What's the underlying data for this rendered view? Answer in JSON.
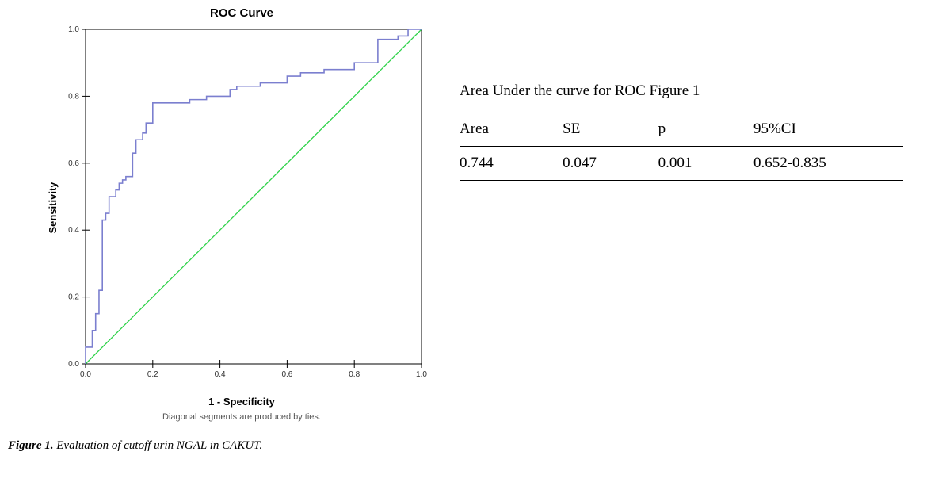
{
  "chart": {
    "type": "line",
    "title": "ROC Curve",
    "xlabel": "1 - Specificity",
    "ylabel": "Sensitivity",
    "footnote": "Diagonal segments are produced by ties.",
    "title_fontsize": 15,
    "label_fontsize": 13,
    "tick_fontsize": 10,
    "footnote_fontsize": 11,
    "background_color": "#ffffff",
    "frame_color": "#000000",
    "xlim": [
      0.0,
      1.0
    ],
    "ylim": [
      0.0,
      1.0
    ],
    "xticks": [
      0.0,
      0.2,
      0.4,
      0.6,
      0.8,
      1.0
    ],
    "yticks": [
      0.0,
      0.2,
      0.4,
      0.6,
      0.8,
      1.0
    ],
    "xtick_labels": [
      "0.0",
      "0.2",
      "0.4",
      "0.6",
      "0.8",
      "1.0"
    ],
    "ytick_labels": [
      "0.0",
      "0.2",
      "0.4",
      "0.6",
      "0.8",
      "1.0"
    ],
    "diagonal": {
      "x": [
        0.0,
        1.0
      ],
      "y": [
        0.0,
        1.0
      ],
      "color": "#2fd24a",
      "width": 1.3
    },
    "roc": {
      "color": "#7b7fcf",
      "width": 1.6,
      "x": [
        0.0,
        0.02,
        0.03,
        0.04,
        0.04,
        0.05,
        0.05,
        0.06,
        0.07,
        0.07,
        0.07,
        0.09,
        0.1,
        0.11,
        0.12,
        0.14,
        0.14,
        0.15,
        0.17,
        0.18,
        0.2,
        0.2,
        0.21,
        0.22,
        0.28,
        0.31,
        0.33,
        0.36,
        0.4,
        0.43,
        0.45,
        0.48,
        0.52,
        0.55,
        0.6,
        0.62,
        0.64,
        0.67,
        0.69,
        0.71,
        0.74,
        0.77,
        0.8,
        0.83,
        0.87,
        0.87,
        0.9,
        0.93,
        0.96,
        1.0
      ],
      "y": [
        0.0,
        0.05,
        0.1,
        0.15,
        0.22,
        0.22,
        0.4,
        0.43,
        0.45,
        0.47,
        0.49,
        0.5,
        0.52,
        0.54,
        0.55,
        0.56,
        0.6,
        0.63,
        0.67,
        0.69,
        0.72,
        0.74,
        0.78,
        0.78,
        0.78,
        0.78,
        0.79,
        0.79,
        0.8,
        0.8,
        0.82,
        0.83,
        0.83,
        0.84,
        0.84,
        0.86,
        0.86,
        0.87,
        0.87,
        0.87,
        0.88,
        0.88,
        0.88,
        0.9,
        0.9,
        0.96,
        0.97,
        0.97,
        0.98,
        1.0
      ]
    }
  },
  "caption": {
    "label": "Figure 1.",
    "text": " Evaluation of cutoff urin NGAL in CAKUT."
  },
  "auc_table": {
    "title": "Area Under the curve for ROC Figure 1",
    "columns": [
      "Area",
      "SE",
      "p",
      "95%CI"
    ],
    "rows": [
      [
        "0.744",
        "0.047",
        "0.001",
        "0.652-0.835"
      ]
    ],
    "border_color": "#000000",
    "fontsize": 19
  }
}
